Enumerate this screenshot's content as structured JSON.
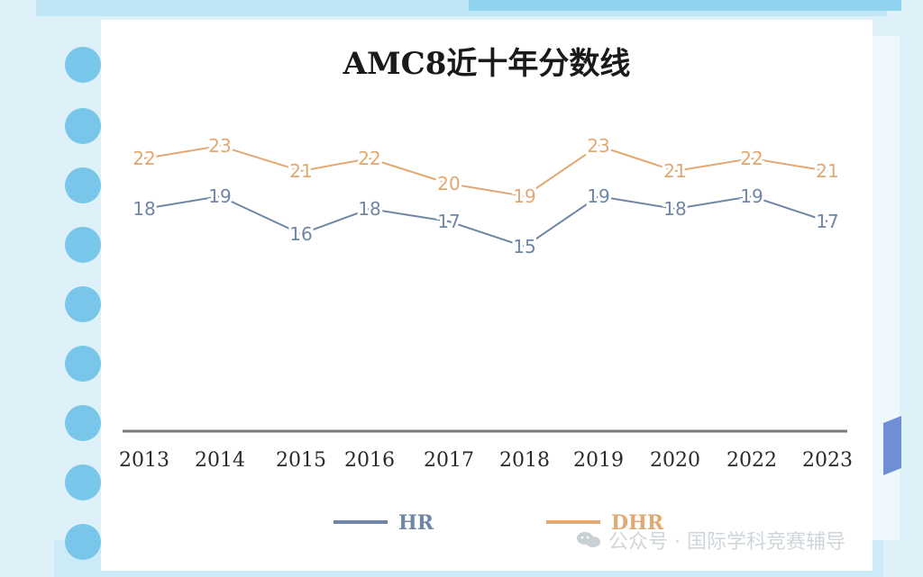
{
  "chart_data": {
    "type": "line",
    "title": "AMC8近十年分数线",
    "categories": [
      "2013",
      "2014",
      "2015",
      "2016",
      "2017",
      "2018",
      "2019",
      "2020",
      "2022",
      "2023"
    ],
    "series": [
      {
        "name": "HR",
        "values": [
          18,
          19,
          16,
          18,
          17,
          15,
          19,
          18,
          19,
          17
        ],
        "color": "#6f86a6"
      },
      {
        "name": "DHR",
        "values": [
          22,
          23,
          21,
          22,
          20,
          19,
          23,
          21,
          22,
          21
        ],
        "color": "#e3a872"
      }
    ],
    "legend_position": "bottom",
    "grid": false,
    "show_data_labels": true
  },
  "watermark": {
    "text": "公众号 · 国际学科竞赛辅导",
    "icon": "wechat-icon"
  },
  "colors": {
    "background": "#dff1f8",
    "card": "#ffffff",
    "axis": "#7a7a7a",
    "title": "#1a1a1a"
  }
}
